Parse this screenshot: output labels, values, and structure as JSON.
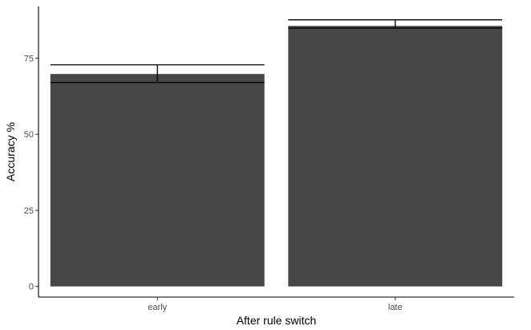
{
  "chart_data": {
    "type": "bar",
    "categories": [
      "early",
      "late"
    ],
    "values": [
      69.8,
      85.6
    ],
    "error_bars": [
      {
        "lower": 67.0,
        "upper": 72.8
      },
      {
        "lower": 84.9,
        "upper": 87.6
      }
    ],
    "title": "",
    "xlabel": "After rule switch",
    "ylabel": "Accuracy %",
    "ylim": [
      -3.5,
      92
    ],
    "yticks": [
      0,
      25,
      50,
      75
    ],
    "yticklabels": [
      "0",
      "25",
      "50",
      "75"
    ],
    "grid": false,
    "legend": "none",
    "colors": {
      "bar": "#474747",
      "error_bar": "#000000",
      "axis": "#000000",
      "tick_label": "#4d4d4d",
      "background": "#ffffff"
    }
  }
}
